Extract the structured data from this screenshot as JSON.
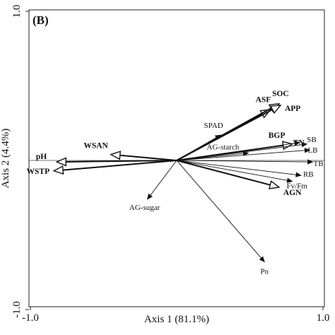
{
  "chart_data": {
    "type": "biplot",
    "panel_label": "(B)",
    "xlabel": "Axis 1 (81.1%)",
    "ylabel": "Axis 2 (4.4%)",
    "xlim": [
      -1.0,
      1.0
    ],
    "ylim": [
      -1.0,
      1.0
    ],
    "x_ticks": [
      {
        "value": -1.0,
        "label": "-1.0"
      },
      {
        "value": 1.0,
        "label": "1.0"
      }
    ],
    "y_ticks": [
      {
        "value": -1.0,
        "label": "-1.0"
      },
      {
        "value": 1.0,
        "label": "1.0"
      }
    ],
    "reference_lines": {
      "x": 0,
      "y": 0
    },
    "vectors": [
      {
        "label": "pH",
        "x": -0.82,
        "y": -0.01,
        "bold": true,
        "arrow": "thick"
      },
      {
        "label": "WSAN",
        "x": -0.45,
        "y": 0.04,
        "bold": true,
        "arrow": "thick"
      },
      {
        "label": "WSTP",
        "x": -0.84,
        "y": -0.07,
        "bold": true,
        "arrow": "thick"
      },
      {
        "label": "ASF",
        "x": 0.64,
        "y": 0.34,
        "bold": true,
        "arrow": "thick"
      },
      {
        "label": "SOC",
        "x": 0.7,
        "y": 0.38,
        "bold": true,
        "arrow": "thick"
      },
      {
        "label": "APP",
        "x": 0.71,
        "y": 0.37,
        "bold": true,
        "arrow": "thick"
      },
      {
        "label": "SPAD",
        "x": 0.3,
        "y": 0.17,
        "bold": false,
        "arrow": "thin"
      },
      {
        "label": "AG-starch",
        "x": 0.49,
        "y": 0.05,
        "bold": false,
        "arrow": "thin"
      },
      {
        "label": "BGP",
        "x": 0.79,
        "y": 0.11,
        "bold": true,
        "arrow": "thick"
      },
      {
        "label": "TN",
        "x": 0.84,
        "y": 0.12,
        "bold": true,
        "arrow": "thin"
      },
      {
        "label": "SB",
        "x": 0.89,
        "y": 0.11,
        "bold": false,
        "arrow": "thin"
      },
      {
        "label": "LB",
        "x": 0.91,
        "y": 0.07,
        "bold": false,
        "arrow": "thin"
      },
      {
        "label": "TB",
        "x": 0.93,
        "y": -0.01,
        "bold": false,
        "arrow": "thin"
      },
      {
        "label": "RB",
        "x": 0.85,
        "y": -0.1,
        "bold": false,
        "arrow": "thin"
      },
      {
        "label": "Fv/Fm",
        "x": 0.79,
        "y": -0.14,
        "bold": false,
        "arrow": "thin"
      },
      {
        "label": "AGN",
        "x": 0.7,
        "y": -0.18,
        "bold": true,
        "arrow": "thick"
      },
      {
        "label": "AG-sugar",
        "x": -0.2,
        "y": -0.26,
        "bold": false,
        "arrow": "thin"
      },
      {
        "label": "Pn",
        "x": 0.6,
        "y": -0.68,
        "bold": false,
        "arrow": "thin"
      }
    ]
  }
}
